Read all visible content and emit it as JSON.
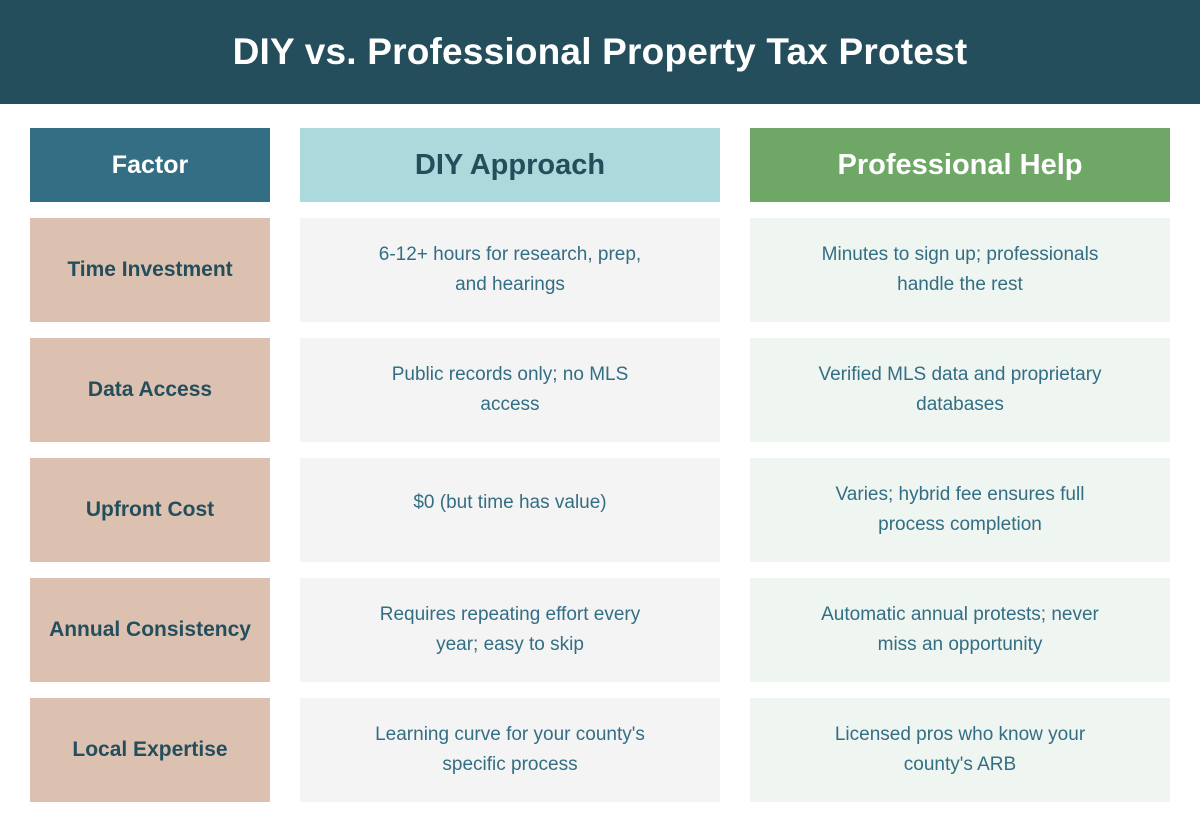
{
  "title": "DIY vs. Professional Property Tax Protest",
  "columns": {
    "factor": "Factor",
    "diy": "DIY Approach",
    "pro": "Professional Help"
  },
  "rows": [
    {
      "factor": "Time Investment",
      "diy": "6-12+ hours for research, prep, and hearings",
      "pro": "Minutes to sign up; professionals handle the rest"
    },
    {
      "factor": "Data Access",
      "diy": "Public records only; no MLS access",
      "pro": "Verified MLS data and proprietary databases"
    },
    {
      "factor": "Upfront Cost",
      "diy": "$0 (but time has value)",
      "pro": "Varies; hybrid fee ensures full process completion"
    },
    {
      "factor": "Annual Consistency",
      "diy": "Requires repeating effort every year; easy to skip",
      "pro": "Automatic annual protests; never miss an opportunity"
    },
    {
      "factor": "Local Expertise",
      "diy": "Learning curve for your county's specific process",
      "pro": "Licensed pros who know your county's ARB"
    }
  ],
  "colors": {
    "title_bg": "#244e5c",
    "factor_header": "#336e84",
    "diy_header": "#acd9dc",
    "pro_header": "#6fa866",
    "factor_cell": "#dcc1b1",
    "diy_cell": "#f4f4f4",
    "pro_cell": "#eff5f0"
  }
}
